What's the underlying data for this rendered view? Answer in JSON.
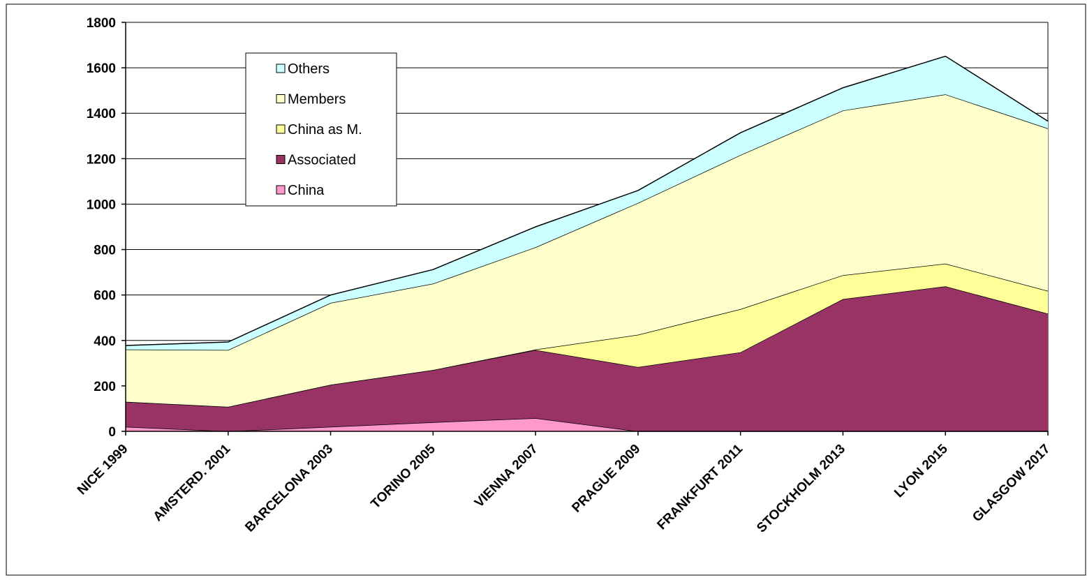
{
  "chart_data": {
    "type": "area",
    "stacked": true,
    "title": "",
    "xlabel": "",
    "ylabel": "",
    "ylim": [
      0,
      1800
    ],
    "yticks": [
      0,
      200,
      400,
      600,
      800,
      1000,
      1200,
      1400,
      1600,
      1800
    ],
    "grid": "horizontal",
    "legend_position": "upper-left",
    "categories": [
      "NICE 1999",
      "AMSTERD. 2001",
      "BARCELONA 2003",
      "TORINO 2005",
      "VIENNA 2007",
      "PRAGUE 2009",
      "FRANKFURT 2011",
      "STOCKHOLM 2013",
      "LYON 2015",
      "GLASGOW 2017"
    ],
    "series": [
      {
        "name": "China",
        "color": "#FF99CC",
        "values": [
          20,
          0,
          20,
          40,
          58,
          0,
          0,
          0,
          0,
          0
        ]
      },
      {
        "name": "Associated",
        "color": "#993366",
        "values": [
          110,
          108,
          185,
          230,
          300,
          283,
          348,
          582,
          638,
          518
        ]
      },
      {
        "name": "China as M.",
        "color": "#FFFF99",
        "values": [
          0,
          0,
          0,
          0,
          2,
          142,
          190,
          105,
          100,
          100
        ]
      },
      {
        "name": "Members",
        "color": "#FFFFCC",
        "values": [
          230,
          250,
          360,
          380,
          450,
          580,
          678,
          725,
          745,
          715
        ]
      },
      {
        "name": "Others",
        "color": "#CCFFFF",
        "values": [
          18,
          35,
          35,
          62,
          90,
          55,
          98,
          100,
          168,
          32
        ]
      }
    ],
    "legend_order": [
      "Others",
      "Members",
      "China as M.",
      "Associated",
      "China"
    ]
  }
}
